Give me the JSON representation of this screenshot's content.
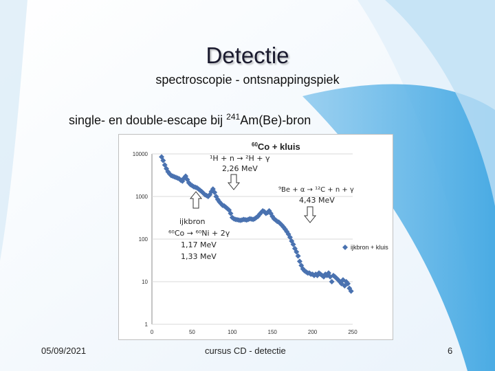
{
  "slide": {
    "title": "Detectie",
    "subtitle": "spectroscopie - ontsnappingspiek",
    "heading_prefix": "single- en double-escape bij ",
    "heading_sup": "241",
    "heading_suffix": "Am(Be)-bron",
    "footer_date": "05/09/2021",
    "footer_center": "cursus CD - detectie",
    "page_number": "6"
  },
  "chart_data": {
    "type": "scatter",
    "title": "60Co + kluis",
    "title_sup": "60",
    "title_main": "Co + kluis",
    "yscale": "log",
    "ylim": [
      1,
      10000
    ],
    "xlim": [
      0,
      250
    ],
    "x_ticks": [
      "0",
      "50",
      "100",
      "150",
      "200",
      "250"
    ],
    "y_ticks": [
      "1",
      "10",
      "100",
      "1000",
      "10000"
    ],
    "legend": {
      "label": "ijkbron + kluis",
      "position": "right"
    },
    "marker_color": "#4a72b0",
    "series": [
      {
        "name": "ijkbron + kluis",
        "x": [
          12,
          14,
          16,
          18,
          20,
          22,
          24,
          26,
          28,
          30,
          32,
          34,
          36,
          38,
          40,
          42,
          44,
          46,
          48,
          50,
          52,
          54,
          56,
          58,
          60,
          62,
          64,
          66,
          68,
          70,
          72,
          74,
          76,
          78,
          80,
          82,
          84,
          86,
          88,
          90,
          92,
          94,
          96,
          98,
          100,
          102,
          104,
          106,
          108,
          110,
          112,
          114,
          116,
          118,
          120,
          122,
          124,
          126,
          128,
          130,
          132,
          134,
          136,
          138,
          140,
          142,
          144,
          146,
          148,
          150,
          152,
          154,
          156,
          158,
          160,
          162,
          164,
          166,
          168,
          170,
          172,
          174,
          176,
          178,
          180,
          182,
          184,
          186,
          188,
          190,
          192,
          194,
          196,
          198,
          200,
          202,
          204,
          206,
          208,
          210,
          212,
          214,
          216,
          218,
          220,
          222,
          224,
          226,
          228,
          230,
          232,
          234,
          236,
          238,
          240,
          242,
          244,
          246,
          248
        ],
        "y": [
          8500,
          7000,
          5500,
          4500,
          3800,
          3400,
          3100,
          3000,
          2900,
          2800,
          2700,
          2600,
          2400,
          2300,
          2700,
          3000,
          2500,
          2100,
          1900,
          1800,
          1700,
          1650,
          1600,
          1500,
          1400,
          1300,
          1200,
          1100,
          1050,
          1000,
          1100,
          1300,
          1500,
          1250,
          1000,
          850,
          750,
          680,
          620,
          600,
          560,
          520,
          480,
          400,
          320,
          300,
          290,
          285,
          280,
          275,
          280,
          290,
          285,
          280,
          290,
          300,
          295,
          290,
          300,
          320,
          340,
          380,
          420,
          460,
          440,
          400,
          420,
          460,
          400,
          340,
          300,
          280,
          260,
          250,
          230,
          210,
          190,
          170,
          150,
          130,
          110,
          90,
          75,
          60,
          50,
          40,
          30,
          24,
          20,
          18,
          17,
          16,
          16,
          15,
          15,
          14,
          15,
          14,
          16,
          15,
          14,
          13,
          15,
          14,
          16,
          13,
          10,
          14,
          13,
          12,
          11,
          10,
          9,
          11,
          8,
          10,
          9,
          7,
          6
        ]
      }
    ],
    "annotations": [
      {
        "lines": [
          "¹H + n → ²H + γ",
          "2,26 MeV"
        ],
        "arrow": "hollow-down",
        "at_x": 100
      },
      {
        "lines": [
          "⁹Be + α → ¹²C + n + γ",
          "4,43 MeV"
        ],
        "arrow": "hollow-down",
        "at_x": 210
      },
      {
        "lines": [
          "ijkbron",
          "⁶⁰Co → ⁶⁰Ni + 2γ",
          "1,17 MeV",
          "1,33 MeV"
        ],
        "arrow": "hollow-up",
        "at_x": 83
      }
    ]
  }
}
